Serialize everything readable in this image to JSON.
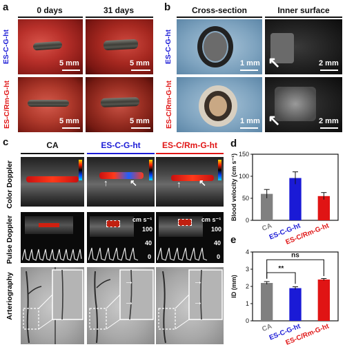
{
  "panels": {
    "a": "a",
    "b": "b",
    "c": "c",
    "d": "d",
    "e": "e"
  },
  "panel_a": {
    "col_heads": [
      "0 days",
      "31 days"
    ],
    "row_labels": [
      "ES-C-G-ht",
      "ES-C/Rm-G-ht"
    ],
    "scale": "5 mm"
  },
  "panel_b": {
    "col_heads": [
      "Cross-section",
      "Inner surface"
    ],
    "row_labels": [
      "ES-C-G-ht",
      "ES-C/Rm-G-ht"
    ],
    "scale_left": "1 mm",
    "scale_right": "2 mm"
  },
  "panel_c": {
    "col_heads": [
      "CA",
      "ES-C-G-ht",
      "ES-C/Rm-G-ht"
    ],
    "row_labels": [
      "Color Doppler",
      "Pulse Doppler",
      "Arteriography"
    ],
    "doppler_unit": "cm s⁻¹",
    "doppler_ticks": [
      "100",
      "40",
      "0"
    ]
  },
  "colors": {
    "CA": "#808080",
    "ES-C-G-ht": "#1a1ad6",
    "ES-C/Rm-G-ht": "#e01414"
  },
  "chart_data": [
    {
      "type": "bar",
      "categories": [
        "CA",
        "ES-C-G-ht",
        "ES-C/Rm-G-ht"
      ],
      "values": [
        60,
        96,
        55
      ],
      "errors": [
        10,
        14,
        8
      ],
      "ylabel": "Blood velocity (cm s⁻¹)",
      "ylim": [
        0,
        150
      ],
      "yticks": [
        "0",
        "50",
        "100",
        "150"
      ]
    },
    {
      "type": "bar",
      "categories": [
        "CA",
        "ES-C-G-ht",
        "ES-C/Rm-G-ht"
      ],
      "values": [
        2.2,
        1.9,
        2.4
      ],
      "errors": [
        0.08,
        0.08,
        0.06
      ],
      "ylabel": "ID (mm)",
      "ylim": [
        0,
        4
      ],
      "yticks": [
        "0",
        "1",
        "2",
        "3",
        "4"
      ],
      "annotations": [
        "**",
        "ns"
      ]
    }
  ]
}
